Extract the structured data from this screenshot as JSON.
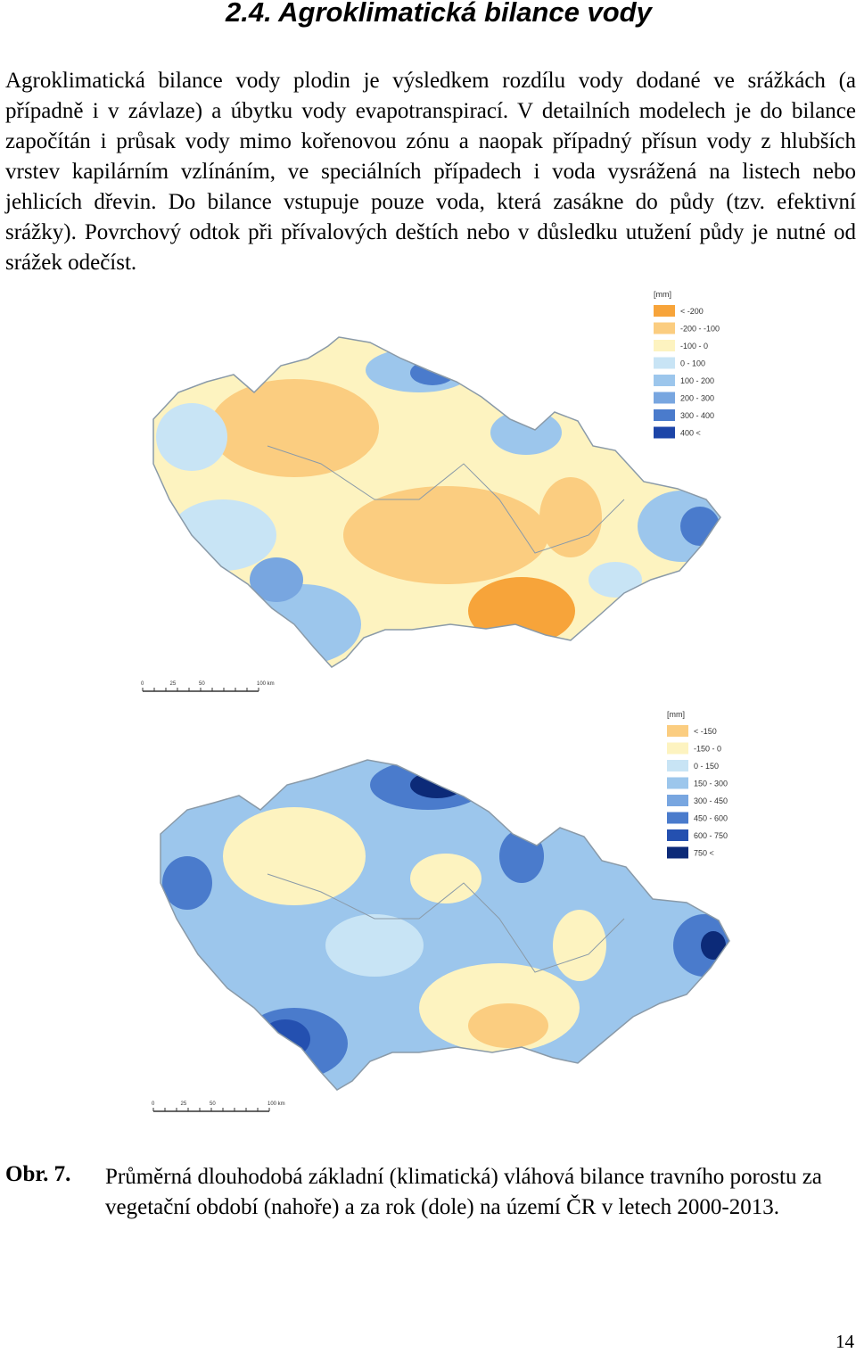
{
  "heading": "2.4. Agroklimatická bilance vody",
  "paragraph": "Agroklimatická bilance vody plodin je výsledkem rozdílu vody dodané ve srážkách (a případně i v závlaze) a úbytku vody evapotranspirací. V detailních modelech je do bilance započítán i průsak vody mimo kořenovou zónu a naopak případný přísun vody z hlubších vrstev kapilárním vzlínáním, ve speciálních případech i voda vysrážená na listech nebo jehlicích dřevin. Do bilance vstupuje pouze voda, která zasákne do půdy (tzv. efektivní srážky). Povrchový odtok při přívalových deštích nebo v důsledku utužení půdy je nutné od srážek odečíst.",
  "maps": [
    {
      "legend_title": "[mm]",
      "legend": [
        {
          "label": "< -200",
          "color": "#f7a43a"
        },
        {
          "label": "-200 - -100",
          "color": "#fbcd80"
        },
        {
          "label": "-100 - 0",
          "color": "#fdf3c0"
        },
        {
          "label": "0 - 100",
          "color": "#c8e4f5"
        },
        {
          "label": "100 - 200",
          "color": "#9cc6ec"
        },
        {
          "label": "200 - 300",
          "color": "#78a6e0"
        },
        {
          "label": "300 - 400",
          "color": "#4a7bcc"
        },
        {
          "label": "400 <",
          "color": "#1c45a8"
        }
      ],
      "scale": [
        "0",
        "25",
        "50",
        "100 km"
      ]
    },
    {
      "legend_title": "[mm]",
      "legend": [
        {
          "label": "< -150",
          "color": "#fbcd80"
        },
        {
          "label": "-150 - 0",
          "color": "#fdf3c0"
        },
        {
          "label": "0 - 150",
          "color": "#c8e4f5"
        },
        {
          "label": "150 - 300",
          "color": "#9cc6ec"
        },
        {
          "label": "300 - 450",
          "color": "#78a6e0"
        },
        {
          "label": "450 - 600",
          "color": "#4a7bcc"
        },
        {
          "label": "600 - 750",
          "color": "#2450b0"
        },
        {
          "label": "750 <",
          "color": "#0c2a78"
        }
      ],
      "scale": [
        "0",
        "25",
        "50",
        "100 km"
      ]
    }
  ],
  "caption": {
    "label": "Obr. 7.",
    "text": "Průměrná dlouhodobá základní (klimatická) vláhová bilance travního porostu za vegetační období (nahoře) a za rok (dole) na území ČR v letech 2000-2013."
  },
  "page_number": "14"
}
